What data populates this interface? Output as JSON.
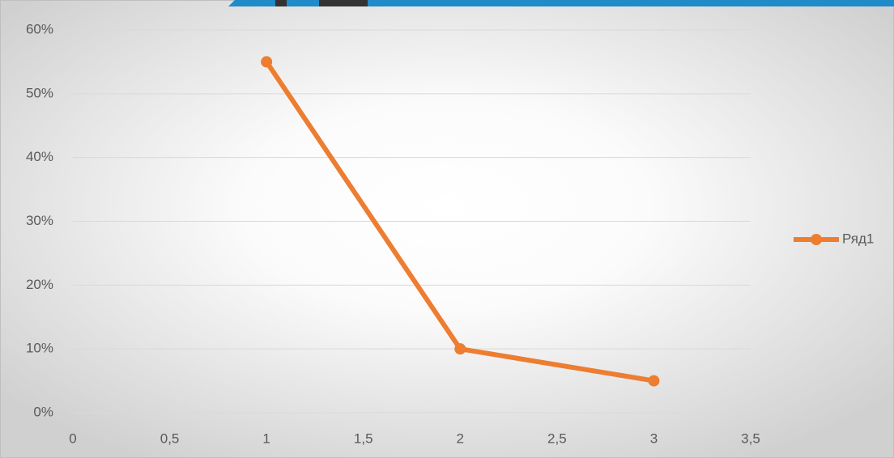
{
  "chart_data": {
    "type": "line",
    "x": [
      1,
      2,
      3
    ],
    "series": [
      {
        "name": "Ряд1",
        "color": "#ed7d31",
        "values": [
          55,
          10,
          5
        ]
      }
    ],
    "xlim": [
      0,
      3.5
    ],
    "xticks": [
      0,
      {
        "value": 0.5,
        "label": "0,5"
      },
      1,
      {
        "value": 1.5,
        "label": "1,5"
      },
      2,
      {
        "value": 2.5,
        "label": "2,5"
      },
      3,
      {
        "value": 3.5,
        "label": "3,5"
      }
    ],
    "ylim": [
      0,
      60
    ],
    "yticks": [
      {
        "value": 0,
        "label": "0%"
      },
      {
        "value": 10,
        "label": "10%"
      },
      {
        "value": 20,
        "label": "20%"
      },
      {
        "value": 30,
        "label": "30%"
      },
      {
        "value": 40,
        "label": "40%"
      },
      {
        "value": 50,
        "label": "50%"
      },
      {
        "value": 60,
        "label": "60%"
      }
    ],
    "grid": true,
    "legend": "right",
    "markers": true
  }
}
